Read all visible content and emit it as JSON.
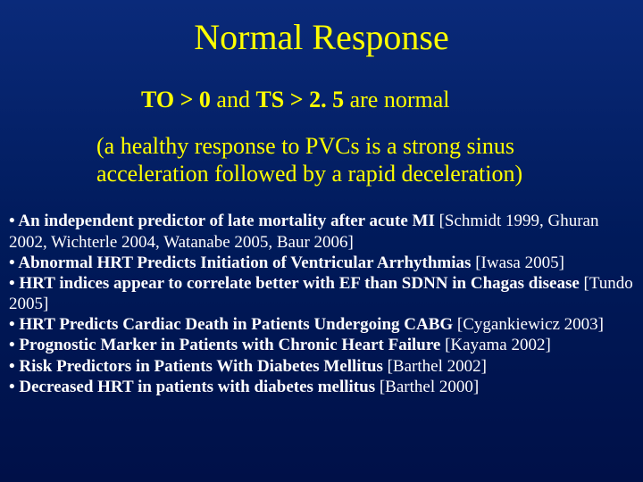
{
  "colors": {
    "bg_top": "#0a2a7a",
    "bg_bottom": "#001048",
    "title_color": "#ffff00",
    "body_color": "#ffffff"
  },
  "typography": {
    "family": "Times New Roman",
    "title_size_pt": 40,
    "subtitle_size_pt": 26,
    "desc_size_pt": 26,
    "bullet_size_pt": 19
  },
  "title": "Normal Response",
  "subtitle_bold": "TO > 0",
  "subtitle_mid": " and ",
  "subtitle_bold2": "TS > 2. 5",
  "subtitle_tail": " are normal",
  "description": "(a healthy response to PVCs is a strong sinus acceleration followed by a rapid deceleration)",
  "bullets": [
    {
      "lead": "• An independent predictor of late mortality after acute MI ",
      "tail": "[Schmidt 1999, Ghuran 2002, Wichterle 2004, Watanabe 2005, Baur 2006]"
    },
    {
      "lead": "• Abnormal HRT Predicts Initiation of Ventricular Arrhythmias ",
      "tail": "[Iwasa 2005]"
    },
    {
      "lead": "• HRT indices appear to correlate better with EF than SDNN in Chagas disease ",
      "tail": "[Tundo 2005]"
    },
    {
      "lead": "• HRT Predicts Cardiac Death in Patients Undergoing CABG ",
      "tail": "[Cygankiewicz 2003]"
    },
    {
      "lead": "• Prognostic Marker in Patients with Chronic Heart Failure ",
      "tail": "[Kayama 2002]"
    },
    {
      "lead": "• Risk Predictors in Patients With Diabetes Mellitus ",
      "tail": "[Barthel 2002]"
    },
    {
      "lead": "• Decreased HRT in patients with diabetes mellitus ",
      "tail": "[Barthel 2000]"
    }
  ]
}
